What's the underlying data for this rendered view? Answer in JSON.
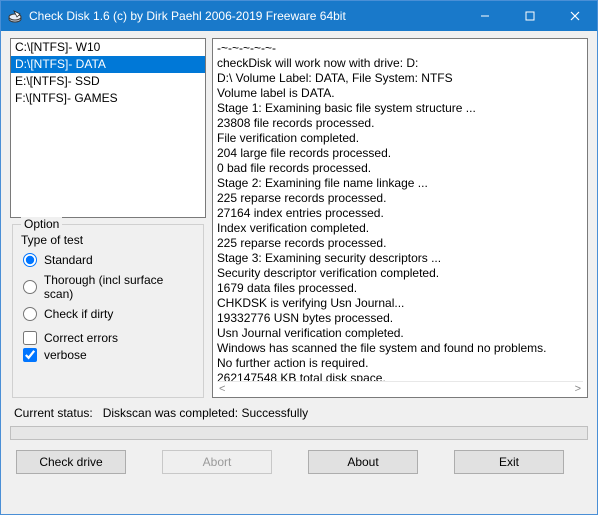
{
  "window": {
    "title": "Check Disk 1.6 (c) by Dirk Paehl  2006-2019 Freeware 64bit",
    "accent_color": "#1979ca"
  },
  "drives": [
    {
      "label": "C:\\[NTFS]- W10",
      "selected": false
    },
    {
      "label": "D:\\[NTFS]- DATA",
      "selected": true
    },
    {
      "label": "E:\\[NTFS]- SSD",
      "selected": false
    },
    {
      "label": "F:\\[NTFS]- GAMES",
      "selected": false
    }
  ],
  "options": {
    "legend": "Option",
    "type_label": "Type of test",
    "radios": [
      {
        "label": "Standard",
        "checked": true
      },
      {
        "label": "Thorough (incl surface scan)",
        "checked": false
      },
      {
        "label": "Check if dirty",
        "checked": false
      }
    ],
    "checks": [
      {
        "label": "Correct errors",
        "checked": false
      },
      {
        "label": "verbose",
        "checked": true
      }
    ]
  },
  "log": [
    "-~-~-~-~-~-",
    "checkDisk will work now with drive: D:",
    "D:\\ Volume Label: DATA, File System: NTFS",
    "Volume label is DATA.",
    "Stage 1: Examining basic file system structure ...",
    "23808 file records processed.",
    "File verification completed.",
    "204 large file records processed.",
    "0 bad file records processed.",
    "Stage 2: Examining file name linkage ...",
    "225 reparse records processed.",
    "27164 index entries processed.",
    "Index verification completed.",
    "225 reparse records processed.",
    "Stage 3: Examining security descriptors ...",
    "Security descriptor verification completed.",
    "1679 data files processed.",
    "CHKDSK is verifying Usn Journal...",
    "19332776 USN bytes processed.",
    "Usn Journal verification completed.",
    "Windows has scanned the file system and found no problems.",
    "No further action is required.",
    "262147548 KB total disk space."
  ],
  "status": {
    "prefix": "Current status:",
    "text": "Diskscan was completed: Successfully"
  },
  "buttons": {
    "check": "Check drive",
    "abort": "Abort",
    "about": "About",
    "exit": "Exit"
  },
  "scroll_arrows": {
    "left": "<",
    "right": ">"
  }
}
